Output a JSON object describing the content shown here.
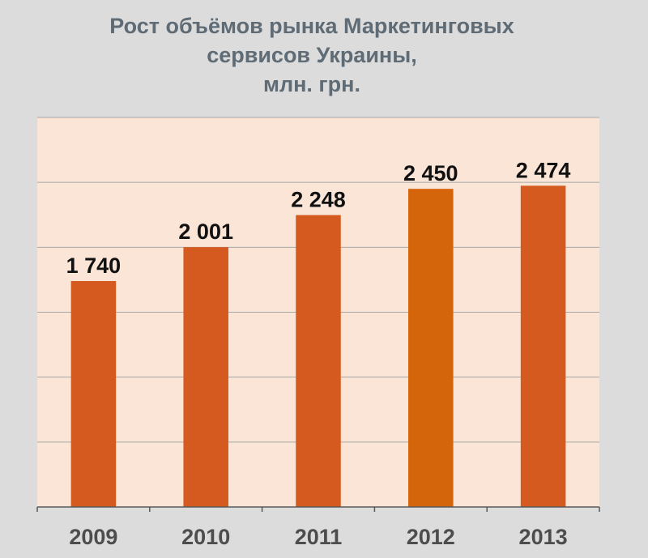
{
  "chart_data": {
    "type": "bar",
    "title_lines": [
      "Рост объёмов рынка Маркетинговых",
      "сервисов Украины,",
      "млн. грн."
    ],
    "categories": [
      "2009",
      "2010",
      "2011",
      "2012",
      "2013"
    ],
    "values": [
      1740,
      2001,
      2248,
      2450,
      2474
    ],
    "value_labels": [
      "1 740",
      "2 001",
      "2 248",
      "2 450",
      "2 474"
    ],
    "ylim": [
      0,
      3000
    ],
    "grid": true,
    "legend": "none",
    "colors": {
      "background": "#dcdcdc",
      "plot_background": "#fbe5d6",
      "bar": "#d45a1f",
      "bar_highlight": "#d4650b",
      "gridline": "#a6a6a6",
      "axis": "#595959"
    },
    "highlight_index": 3
  }
}
